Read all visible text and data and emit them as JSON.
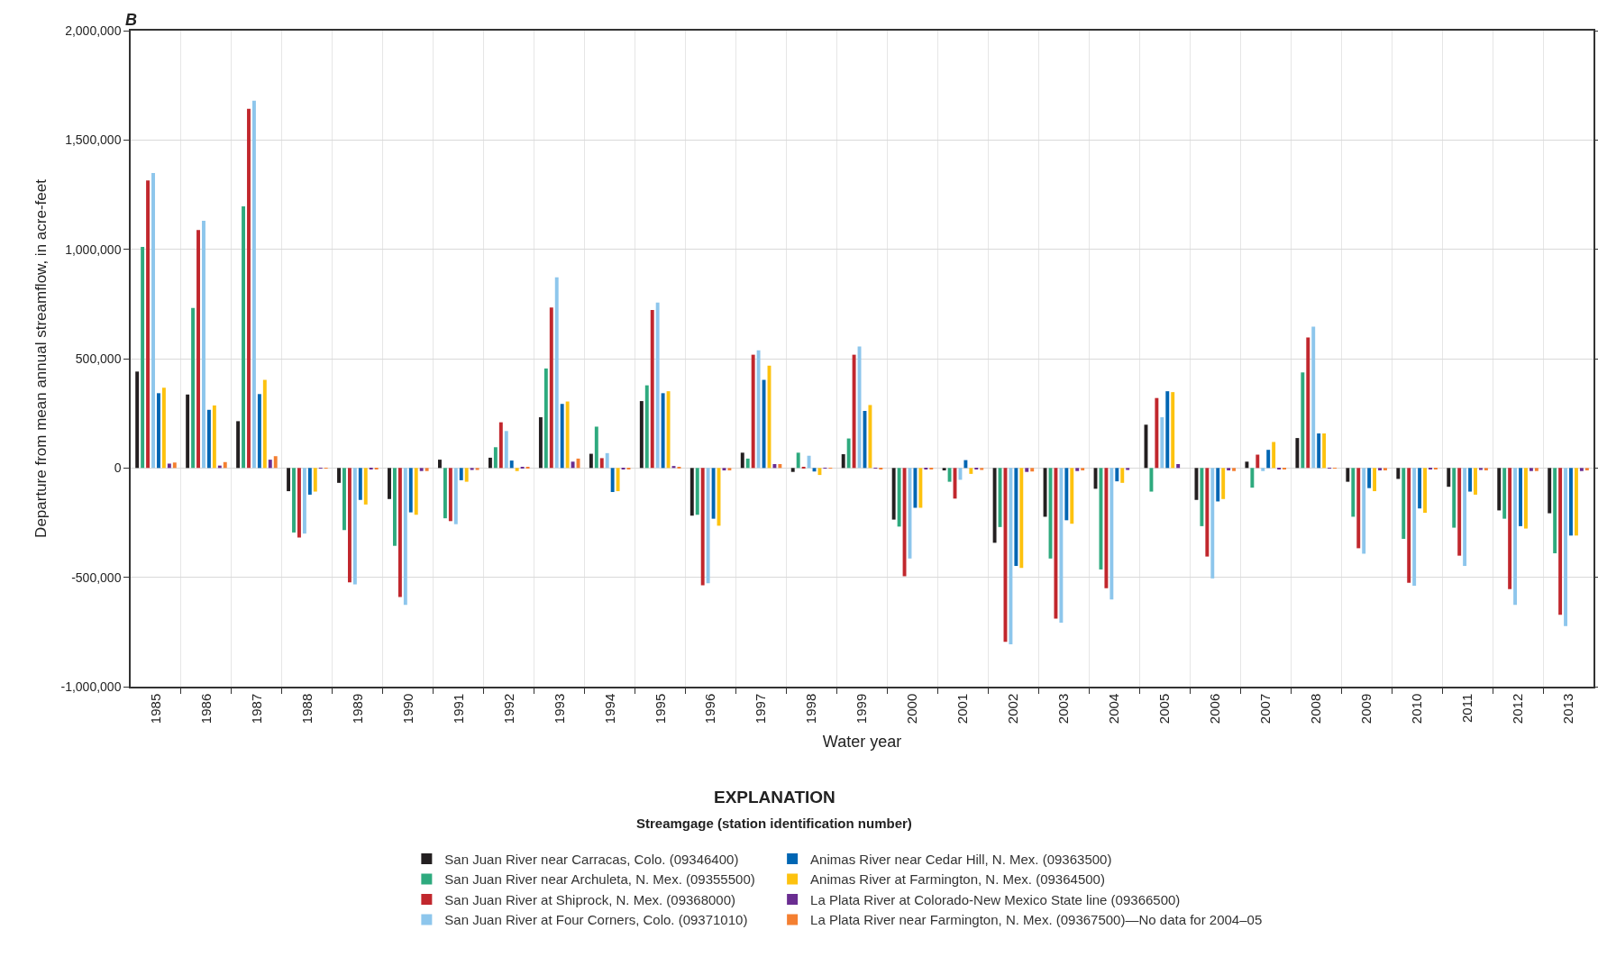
{
  "chart_data": {
    "type": "bar",
    "title": "B",
    "xlabel": "Water year",
    "ylabel": "Departure from mean annual streamflow, in acre-feet",
    "legend_title": "Streamgage (station identification number)",
    "annotations": [
      "EXPLANATION"
    ],
    "categories": [
      "1985",
      "1986",
      "1987",
      "1988",
      "1989",
      "1990",
      "1991",
      "1992",
      "1993",
      "1994",
      "1995",
      "1996",
      "1997",
      "1998",
      "1999",
      "2000",
      "2001",
      "2002",
      "2003",
      "2004",
      "2005",
      "2006",
      "2007",
      "2008",
      "2009",
      "2010",
      "2011",
      "2012",
      "2013"
    ],
    "series": [
      {
        "name": "San Juan River near Carracas, Colo. (09346400)",
        "color": "#231f20",
        "values": [
          441000,
          336000,
          214000,
          -106000,
          -68000,
          -142000,
          38000,
          47000,
          232000,
          65000,
          306000,
          -218000,
          70000,
          -18000,
          63000,
          -236000,
          -11000,
          -342000,
          -223000,
          -95000,
          198000,
          -146000,
          29000,
          137000,
          -63000,
          -50000,
          -86000,
          -194000,
          -207000
        ]
      },
      {
        "name": "San Juan River near Archuleta, N. Mex. (09355500)",
        "color": "#2eaa7e",
        "values": [
          1011000,
          732000,
          1196000,
          -295000,
          -284000,
          -356000,
          -230000,
          95000,
          455000,
          189000,
          378000,
          -214000,
          43000,
          70000,
          135000,
          -268000,
          -63000,
          -270000,
          -414000,
          -464000,
          -108000,
          -266000,
          -90000,
          437000,
          -223000,
          -324000,
          -273000,
          -232000,
          -390000
        ]
      },
      {
        "name": "San Juan River at Shiprock, N. Mex. (09368000)",
        "color": "#c1272d",
        "values": [
          1315000,
          1088000,
          1642000,
          -318000,
          -523000,
          -590000,
          -243000,
          209000,
          734000,
          45000,
          723000,
          -536000,
          518000,
          2000,
          518000,
          -495000,
          -140000,
          -795000,
          -689000,
          -550000,
          320000,
          -405000,
          61000,
          597000,
          -367000,
          -525000,
          -401000,
          -554000,
          -671000
        ]
      },
      {
        "name": "San Juan River at Four Corners, Colo. (09371010)",
        "color": "#8dc6ec",
        "values": [
          1349000,
          1131000,
          1680000,
          -300000,
          -532000,
          -626000,
          -257000,
          169000,
          872000,
          68000,
          757000,
          -527000,
          538000,
          56000,
          556000,
          -414000,
          -54000,
          -806000,
          -707000,
          -601000,
          232000,
          -505000,
          -14000,
          646000,
          -392000,
          -538000,
          -448000,
          -626000,
          -723000
        ]
      },
      {
        "name": "Animas River near Cedar Hill, N. Mex. (09363500)",
        "color": "#0066b3",
        "values": [
          342000,
          266000,
          338000,
          -122000,
          -146000,
          -203000,
          -56000,
          34000,
          293000,
          -110000,
          342000,
          -232000,
          403000,
          -16000,
          261000,
          -182000,
          36000,
          -448000,
          -239000,
          -61000,
          351000,
          -153000,
          83000,
          158000,
          -92000,
          -185000,
          -108000,
          -266000,
          -309000
        ]
      },
      {
        "name": "Animas River at Farmington, N. Mex. (09364500)",
        "color": "#fdc20f",
        "values": [
          367000,
          286000,
          403000,
          -108000,
          -167000,
          -214000,
          -63000,
          -14000,
          304000,
          -106000,
          351000,
          -264000,
          468000,
          -32000,
          288000,
          -182000,
          -27000,
          -457000,
          -255000,
          -68000,
          347000,
          -142000,
          119000,
          158000,
          -106000,
          -205000,
          -122000,
          -277000,
          -309000
        ]
      },
      {
        "name": "La Plata River at Colorado-New Mexico State line (09366500)",
        "color": "#6a2d91",
        "values": [
          20000,
          11000,
          38000,
          -2000,
          -7000,
          -14000,
          -9000,
          5000,
          29000,
          -7000,
          9000,
          -11000,
          18000,
          -2000,
          -2000,
          -7000,
          -7000,
          -18000,
          -14000,
          -9000,
          18000,
          -11000,
          -7000,
          -2000,
          -11000,
          -7000,
          -9000,
          -14000,
          -14000
        ]
      },
      {
        "name": "La Plata River near Farmington, N. Mex. (09367500)—No data for 2004–05",
        "color": "#f47f31",
        "values": [
          25000,
          27000,
          54000,
          -2000,
          -7000,
          -14000,
          -9000,
          2000,
          43000,
          -7000,
          5000,
          -11000,
          18000,
          -2000,
          -4000,
          -7000,
          -9000,
          -16000,
          -11000,
          null,
          null,
          -14000,
          -7000,
          -2000,
          -11000,
          -7000,
          -11000,
          -14000,
          -11000
        ]
      }
    ],
    "ylim": [
      -1000000,
      2000000
    ],
    "yticks": [
      {
        "value": -1000000,
        "label": "-1,000,000"
      },
      {
        "value": -500000,
        "label": "-500,000"
      },
      0,
      {
        "value": 500000,
        "label": "500,000"
      },
      {
        "value": 1000000,
        "label": "1,000,000"
      },
      {
        "value": 1500000,
        "label": "1,500,000"
      },
      {
        "value": 2000000,
        "label": "2,000,000"
      }
    ],
    "grid": true,
    "legend": "bottom"
  }
}
